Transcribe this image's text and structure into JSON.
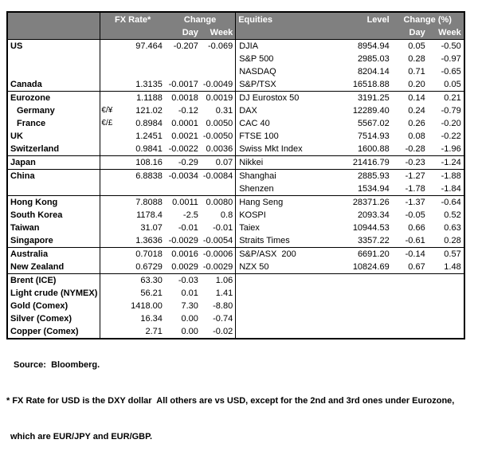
{
  "table": {
    "header": {
      "fx_rate": "FX Rate*",
      "change": "Change",
      "day": "Day",
      "week": "Week",
      "equities": "Equities",
      "level": "Level",
      "change_pct": "Change (%)"
    },
    "sections": [
      {
        "rows": [
          {
            "name": "US",
            "pair": "",
            "rate": "97.464",
            "fx_day": "-0.207",
            "fx_week": "-0.069",
            "equity": "DJIA",
            "level": "8954.94",
            "eq_day": "0.05",
            "eq_week": "-0.50",
            "indent": false
          },
          {
            "name": "",
            "pair": "",
            "rate": "",
            "fx_day": "",
            "fx_week": "",
            "equity": "S&P 500",
            "level": "2985.03",
            "eq_day": "0.28",
            "eq_week": "-0.97",
            "indent": false
          },
          {
            "name": "",
            "pair": "",
            "rate": "",
            "fx_day": "",
            "fx_week": "",
            "equity": "NASDAQ",
            "level": "8204.14",
            "eq_day": "0.71",
            "eq_week": "-0.65",
            "indent": false
          },
          {
            "name": "Canada",
            "pair": "",
            "rate": "1.3135",
            "fx_day": "-0.0017",
            "fx_week": "-0.0049",
            "equity": "S&P/TSX",
            "level": "16518.88",
            "eq_day": "0.20",
            "eq_week": "0.05",
            "indent": false
          }
        ]
      },
      {
        "rows": [
          {
            "name": "Eurozone",
            "pair": "",
            "rate": "1.1188",
            "fx_day": "0.0018",
            "fx_week": "0.0019",
            "equity": "DJ Eurostox 50",
            "level": "3191.25",
            "eq_day": "0.14",
            "eq_week": "0.21",
            "indent": false
          },
          {
            "name": "Germany",
            "pair": "€/¥",
            "rate": "121.02",
            "fx_day": "-0.12",
            "fx_week": "0.31",
            "equity": "DAX",
            "level": "12289.40",
            "eq_day": "0.24",
            "eq_week": "-0.79",
            "indent": true
          },
          {
            "name": "France",
            "pair": "€/£",
            "rate": "0.8984",
            "fx_day": "0.0001",
            "fx_week": "0.0050",
            "equity": "CAC 40",
            "level": "5567.02",
            "eq_day": "0.26",
            "eq_week": "-0.20",
            "indent": true
          },
          {
            "name": "UK",
            "pair": "",
            "rate": "1.2451",
            "fx_day": "0.0021",
            "fx_week": "-0.0050",
            "equity": "FTSE 100",
            "level": "7514.93",
            "eq_day": "0.08",
            "eq_week": "-0.22",
            "indent": false
          },
          {
            "name": "Switzerland",
            "pair": "",
            "rate": "0.9841",
            "fx_day": "-0.0022",
            "fx_week": "0.0036",
            "equity": "Swiss Mkt Index",
            "level": "1600.88",
            "eq_day": "-0.28",
            "eq_week": "-1.96",
            "indent": false
          }
        ]
      },
      {
        "rows": [
          {
            "name": "Japan",
            "pair": "",
            "rate": "108.16",
            "fx_day": "-0.29",
            "fx_week": "0.07",
            "equity": "Nikkei",
            "level": "21416.79",
            "eq_day": "-0.23",
            "eq_week": "-1.24",
            "indent": false
          }
        ]
      },
      {
        "rows": [
          {
            "name": "China",
            "pair": "",
            "rate": "6.8838",
            "fx_day": "-0.0034",
            "fx_week": "-0.0084",
            "equity": "Shanghai",
            "level": "2885.93",
            "eq_day": "-1.27",
            "eq_week": "-1.88",
            "indent": false
          },
          {
            "name": "",
            "pair": "",
            "rate": "",
            "fx_day": "",
            "fx_week": "",
            "equity": "Shenzen",
            "level": "1534.94",
            "eq_day": "-1.78",
            "eq_week": "-1.84",
            "indent": false
          }
        ]
      },
      {
        "rows": [
          {
            "name": "Hong Kong",
            "pair": "",
            "rate": "7.8088",
            "fx_day": "0.0011",
            "fx_week": "0.0080",
            "equity": "Hang Seng",
            "level": "28371.26",
            "eq_day": "-1.37",
            "eq_week": "-0.64",
            "indent": false
          },
          {
            "name": "South Korea",
            "pair": "",
            "rate": "1178.4",
            "fx_day": "-2.5",
            "fx_week": "0.8",
            "equity": "KOSPI",
            "level": "2093.34",
            "eq_day": "-0.05",
            "eq_week": "0.52",
            "indent": false
          },
          {
            "name": "Taiwan",
            "pair": "",
            "rate": "31.07",
            "fx_day": "-0.01",
            "fx_week": "-0.01",
            "equity": "Taiex",
            "level": "10944.53",
            "eq_day": "0.66",
            "eq_week": "0.63",
            "indent": false
          },
          {
            "name": "Singapore",
            "pair": "",
            "rate": "1.3636",
            "fx_day": "-0.0029",
            "fx_week": "-0.0054",
            "equity": "Straits Times",
            "level": "3357.22",
            "eq_day": "-0.61",
            "eq_week": "0.28",
            "indent": false
          }
        ]
      },
      {
        "rows": [
          {
            "name": "Australia",
            "pair": "",
            "rate": "0.7018",
            "fx_day": "0.0016",
            "fx_week": "-0.0006",
            "equity": "S&P/ASX  200",
            "level": "6691.20",
            "eq_day": "-0.14",
            "eq_week": "0.57",
            "indent": false
          },
          {
            "name": "New Zealand",
            "pair": "",
            "rate": "0.6729",
            "fx_day": "0.0029",
            "fx_week": "-0.0029",
            "equity": "NZX 50",
            "level": "10824.69",
            "eq_day": "0.67",
            "eq_week": "1.48",
            "indent": false
          }
        ]
      },
      {
        "rows": [
          {
            "name": "Brent (ICE)",
            "pair": "",
            "rate": "63.30",
            "fx_day": "-0.03",
            "fx_week": "1.06",
            "equity": "",
            "level": "",
            "eq_day": "",
            "eq_week": "",
            "indent": false
          },
          {
            "name": "Light crude (NYMEX)",
            "pair": "",
            "rate": "56.21",
            "fx_day": "0.01",
            "fx_week": "1.41",
            "equity": "",
            "level": "",
            "eq_day": "",
            "eq_week": "",
            "indent": false
          },
          {
            "name": "Gold (Comex)",
            "pair": "",
            "rate": "1418.00",
            "fx_day": "7.30",
            "fx_week": "-8.80",
            "equity": "",
            "level": "",
            "eq_day": "",
            "eq_week": "",
            "indent": false
          },
          {
            "name": "Silver (Comex)",
            "pair": "",
            "rate": "16.34",
            "fx_day": "0.00",
            "fx_week": "-0.74",
            "equity": "",
            "level": "",
            "eq_day": "",
            "eq_week": "",
            "indent": false
          },
          {
            "name": "Copper (Comex)",
            "pair": "",
            "rate": "2.71",
            "fx_day": "0.00",
            "fx_week": "-0.02",
            "equity": "",
            "level": "",
            "eq_day": "",
            "eq_week": "",
            "indent": false
          }
        ]
      }
    ]
  },
  "footer": {
    "source": "Source:  Bloomberg.",
    "note_line1": "* FX Rate for USD is the DXY dollar  All others are vs USD, except for the 2nd and 3rd ones under Eurozone,",
    "note_line2": "which are EUR/JPY and EUR/GBP."
  },
  "colors": {
    "header_bg": "#808080",
    "header_text": "#ffffff",
    "border": "#000000"
  }
}
